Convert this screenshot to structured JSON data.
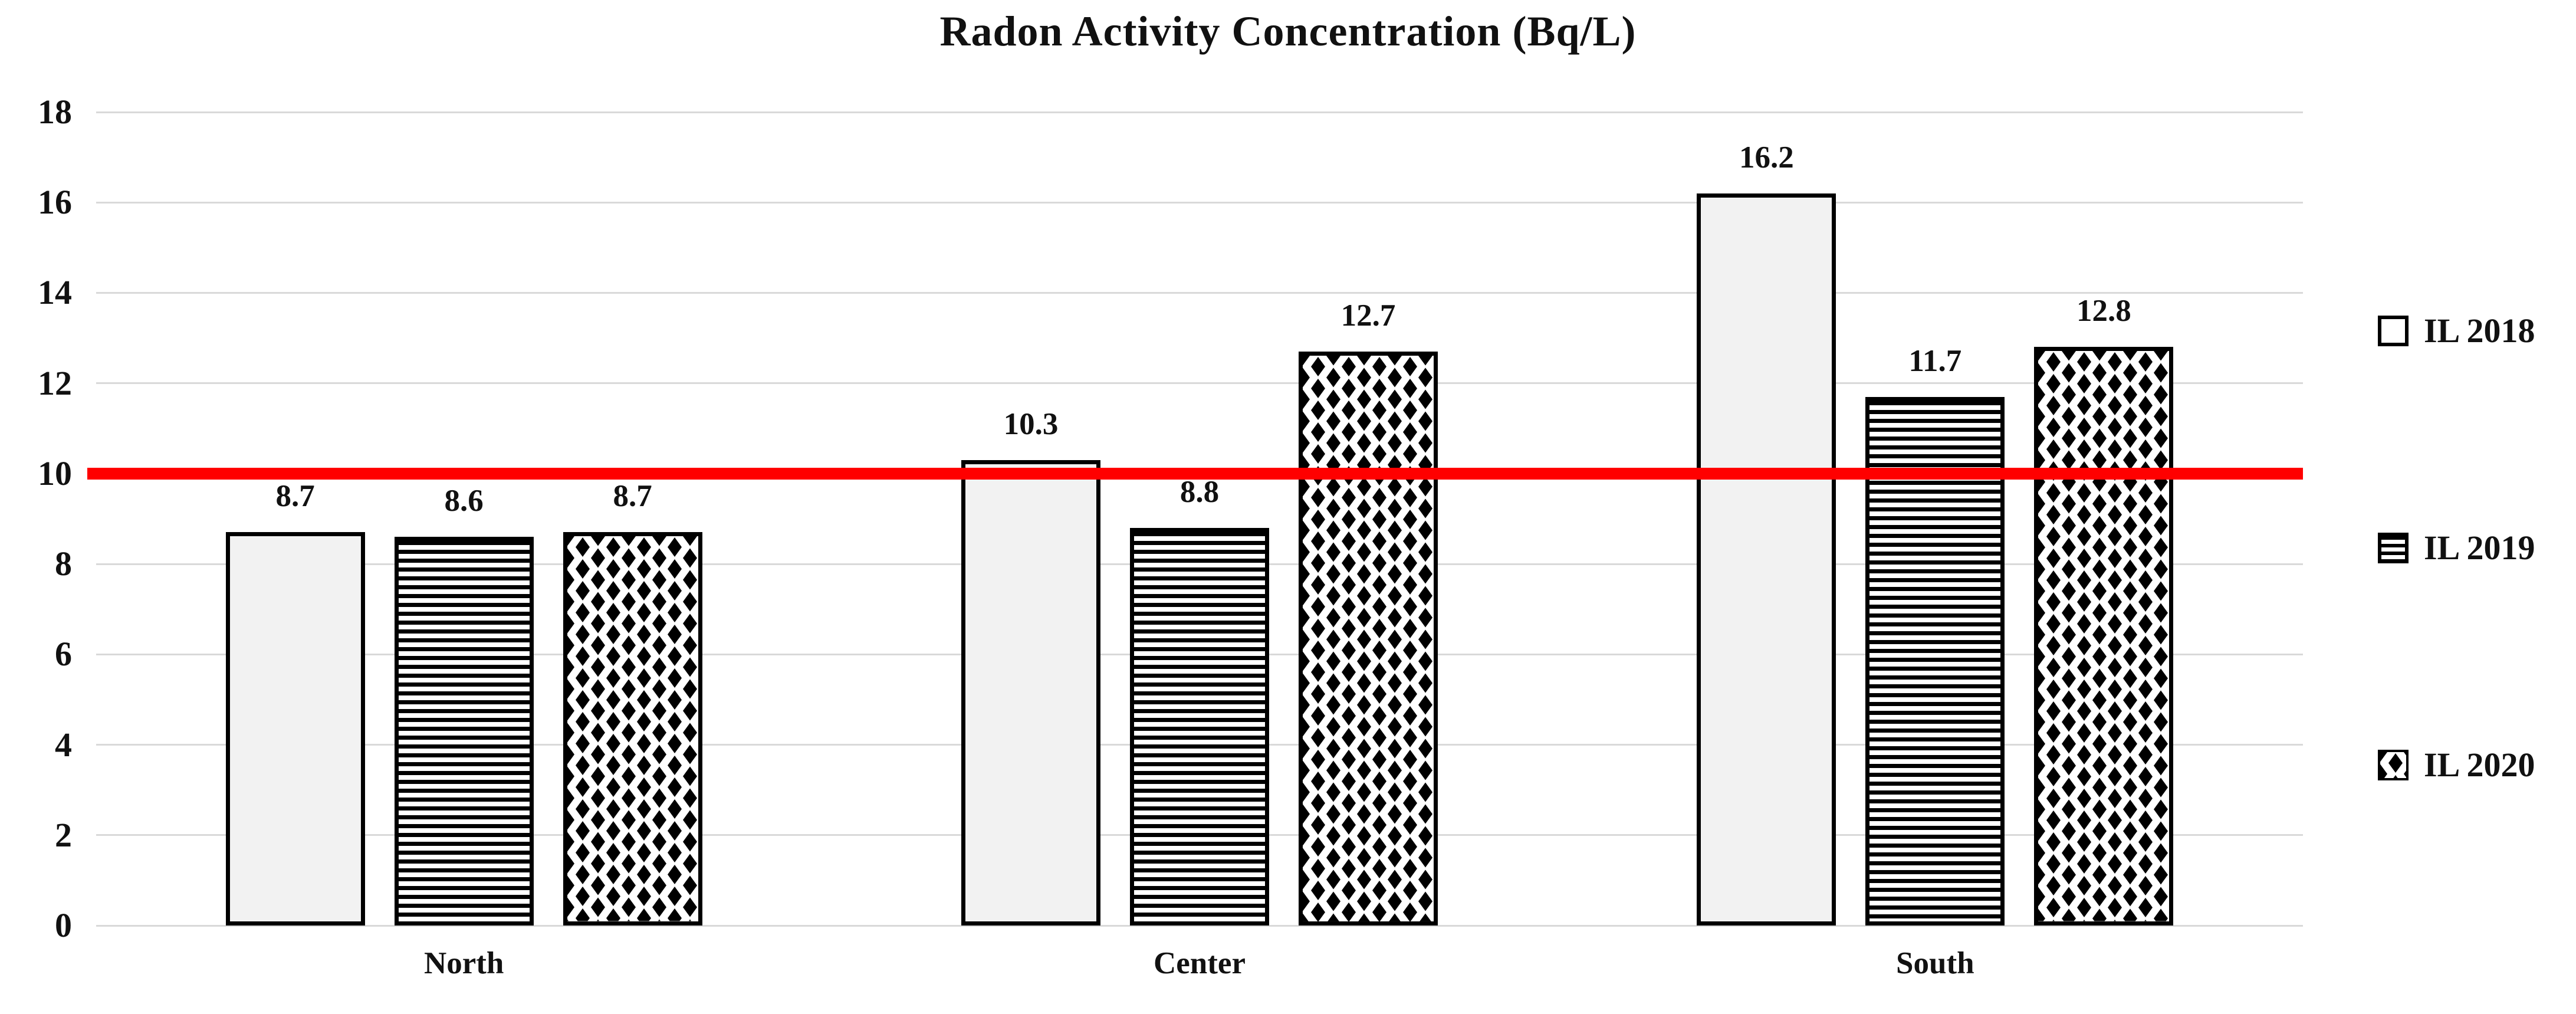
{
  "chart_data": {
    "type": "bar",
    "title": "Radon Activity Concentration (Bq/L)",
    "categories": [
      "North",
      "Center",
      "South"
    ],
    "series": [
      {
        "name": "IL 2018",
        "pattern": "plain",
        "values": [
          8.7,
          10.3,
          16.2
        ]
      },
      {
        "name": "IL 2019",
        "pattern": "hlines",
        "values": [
          8.6,
          8.8,
          11.7
        ]
      },
      {
        "name": "IL 2020",
        "pattern": "diamonds",
        "values": [
          8.7,
          12.7,
          12.8
        ]
      }
    ],
    "data_labels": [
      "8.7",
      "8.6",
      "8.7",
      "10.3",
      "8.8",
      "12.7",
      "16.2",
      "11.7",
      "12.8"
    ],
    "ylim": [
      0,
      18
    ],
    "yticks": [
      0,
      2,
      4,
      6,
      8,
      10,
      12,
      14,
      16,
      18
    ],
    "xlabel": "",
    "ylabel": "",
    "grid": "horizontal",
    "legend_position": "right",
    "reference_line": {
      "value": 10,
      "color": "#ff0000"
    },
    "colors": {
      "bar_fill_2018": "#f2f2f2",
      "bar_border": "#000000",
      "grid": "#d9d9d9",
      "text": "#111111",
      "reference": "#ff0000"
    }
  }
}
